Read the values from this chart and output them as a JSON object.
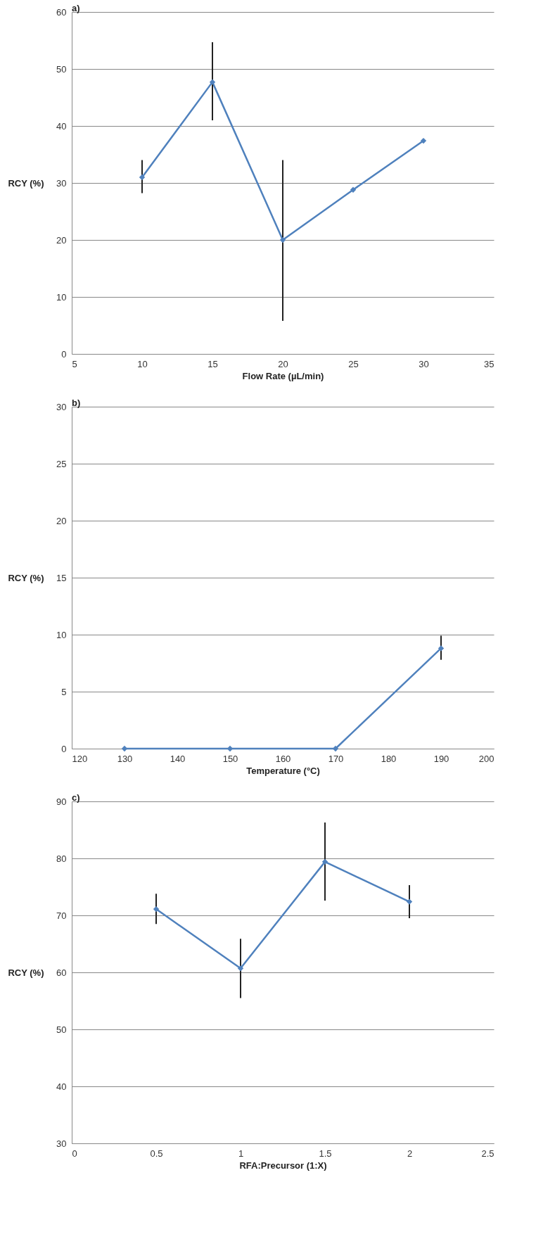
{
  "chart_data": [
    {
      "type": "line",
      "title": "a)",
      "xlabel": "Flow Rate (µL/min)",
      "ylabel": "RCY (%)",
      "x": [
        10,
        15,
        20,
        25,
        30
      ],
      "values": [
        31,
        47.7,
        20,
        28.8,
        37.4
      ],
      "errors": [
        [
          28.2,
          34
        ],
        [
          41,
          54.7
        ],
        [
          5.8,
          34
        ],
        null,
        null
      ],
      "color": "#4f81bd",
      "marker": "diamond",
      "grid": "y",
      "xlim": [
        5,
        35
      ],
      "xticks": [
        5,
        10,
        15,
        20,
        25,
        30,
        35
      ],
      "ylim": [
        0,
        60
      ],
      "yticks": [
        0,
        10,
        20,
        30,
        40,
        50,
        60
      ]
    },
    {
      "type": "line",
      "title": "b)",
      "xlabel": "Temperature (°C)",
      "ylabel": "RCY (%)",
      "x": [
        130,
        150,
        170,
        190
      ],
      "values": [
        0,
        0,
        0,
        8.8
      ],
      "errors": [
        null,
        null,
        null,
        [
          7.8,
          9.9
        ]
      ],
      "color": "#4f81bd",
      "marker": "diamond",
      "grid": "y",
      "xlim": [
        120,
        200
      ],
      "xticks": [
        120,
        130,
        140,
        150,
        160,
        170,
        180,
        190,
        200
      ],
      "ylim": [
        0,
        30
      ],
      "yticks": [
        0,
        5,
        10,
        15,
        20,
        25,
        30
      ]
    },
    {
      "type": "line",
      "title": "c)",
      "xlabel": "RFA:Precursor (1:X)",
      "ylabel": "RCY (%)",
      "x": [
        0.5,
        1,
        1.5,
        2
      ],
      "values": [
        71.1,
        60.7,
        79.4,
        72.4
      ],
      "errors": [
        [
          68.5,
          73.8
        ],
        [
          55.5,
          65.9
        ],
        [
          72.6,
          86.3
        ],
        [
          69.5,
          75.3
        ]
      ],
      "color": "#4f81bd",
      "marker": "diamond",
      "grid": "y",
      "xlim": [
        0,
        2.5
      ],
      "xticks": [
        0,
        0.5,
        1,
        1.5,
        2,
        2.5
      ],
      "ylim": [
        30,
        90
      ],
      "yticks": [
        30,
        40,
        50,
        60,
        70,
        80,
        90
      ]
    }
  ]
}
